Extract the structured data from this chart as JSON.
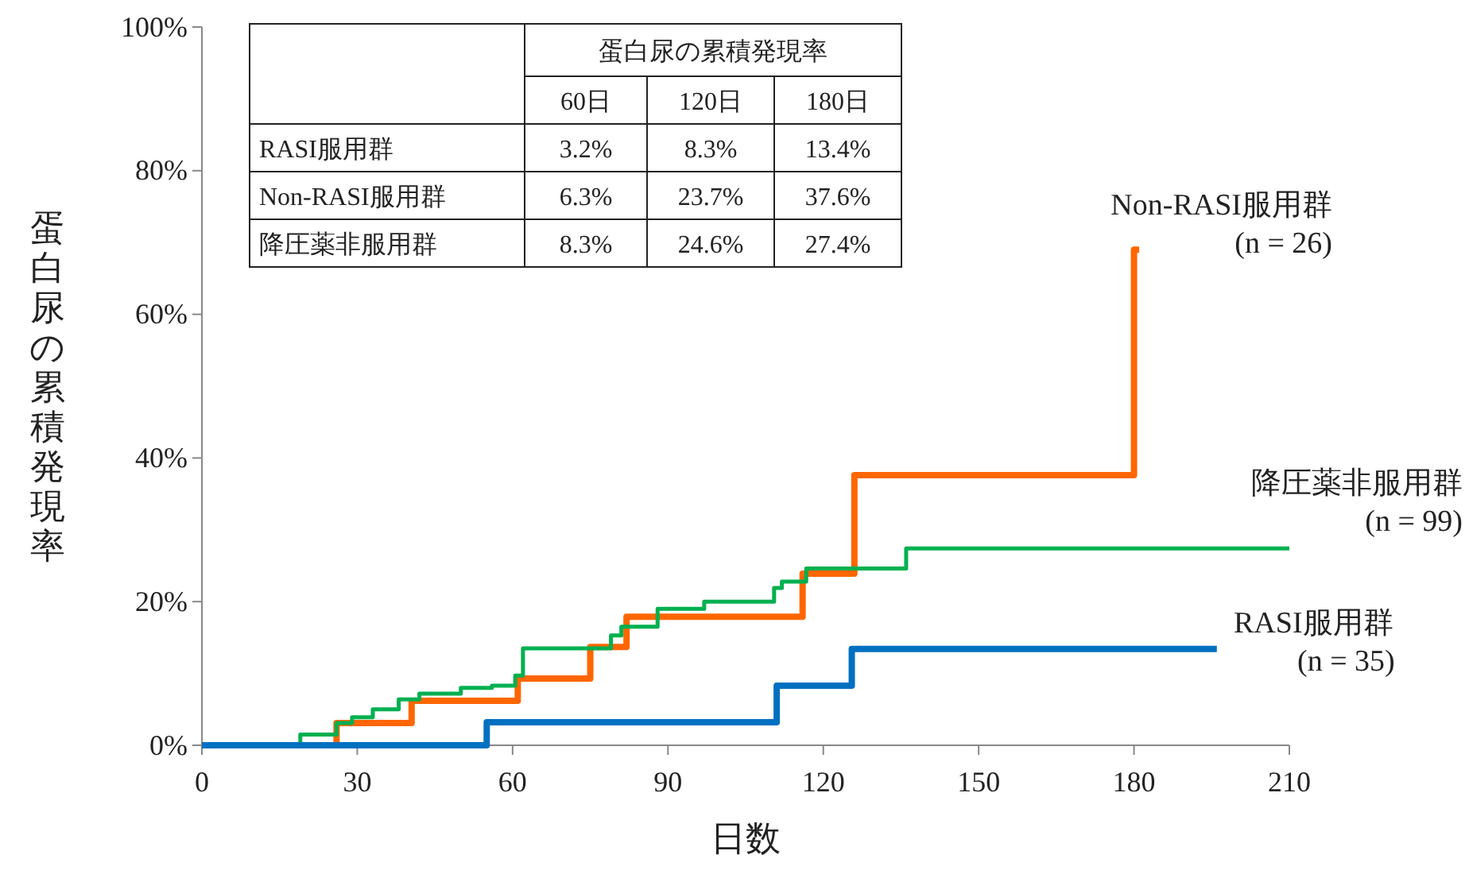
{
  "chart_data": {
    "type": "step",
    "xlabel": "日数",
    "ylabel": "蛋白尿の累積発現率",
    "xlim": [
      0,
      210
    ],
    "xticks": [
      0,
      30,
      60,
      90,
      120,
      150,
      180,
      210
    ],
    "ylim": [
      0,
      100
    ],
    "yticks": [
      {
        "value": 0,
        "label": "0%"
      },
      {
        "value": 20,
        "label": "20%"
      },
      {
        "value": 40,
        "label": "40%"
      },
      {
        "value": 60,
        "label": "60%"
      },
      {
        "value": 80,
        "label": "80%"
      },
      {
        "value": 100,
        "label": "100%"
      }
    ],
    "grid": false,
    "marker": "none",
    "line_style": "solid",
    "series": [
      {
        "name": "Non-RASI服用群 (n = 26)",
        "color": "#ff6600",
        "x": [
          0,
          26,
          40.5,
          61,
          75,
          82,
          116,
          126,
          180,
          181
        ],
        "values": [
          0,
          3.1,
          6.2,
          9.3,
          13.7,
          17.9,
          23.9,
          37.6,
          69,
          69
        ]
      },
      {
        "name": "降圧薬非服用群 (n = 99)",
        "color": "#00b050",
        "x": [
          0,
          19,
          26,
          29,
          33,
          38,
          42,
          50,
          56,
          60.5,
          62,
          79,
          81,
          88,
          97,
          110.5,
          112,
          116.7,
          136,
          210
        ],
        "values": [
          0,
          1.5,
          3.1,
          3.9,
          5,
          6.4,
          7.2,
          8,
          8.3,
          9.7,
          13.5,
          15.3,
          16.5,
          19,
          20,
          21.9,
          22.8,
          24.6,
          27.4,
          27.4
        ]
      },
      {
        "name": "RASI服用群 (n = 35)",
        "color": "#0070c0",
        "x": [
          0,
          55,
          111,
          125.5,
          196
        ],
        "values": [
          0,
          3.2,
          8.3,
          13.4,
          13.4
        ]
      }
    ],
    "annotations": [
      "蛋白尿の累積発現率",
      "60日",
      "120日",
      "180日",
      "RASI服用群",
      "3.2%",
      "8.3%",
      "13.4%",
      "Non-RASI服用群",
      "6.3%",
      "23.7%",
      "37.6%",
      "降圧薬非服用群",
      "8.3%",
      "24.6%",
      "27.4%"
    ]
  }
}
